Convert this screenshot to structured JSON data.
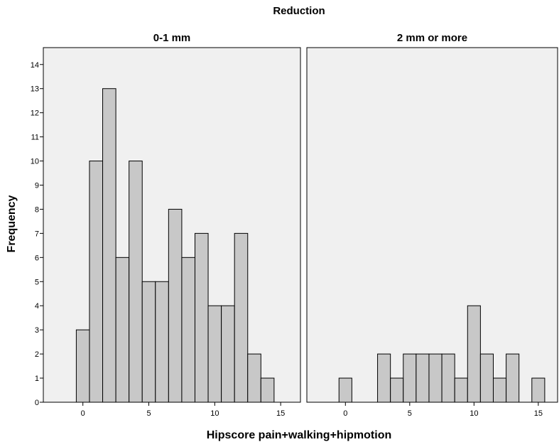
{
  "chart_data": {
    "type": "bar",
    "title": "Reduction",
    "xlabel": "Hipscore pain+walking+hipmotion",
    "ylabel": "Frequency",
    "ylim": [
      0,
      14.7
    ],
    "yticks": [
      0,
      1,
      2,
      3,
      4,
      5,
      6,
      7,
      8,
      9,
      10,
      11,
      12,
      13,
      14
    ],
    "xlim": [
      -3,
      16.5
    ],
    "xticks": [
      0,
      5,
      10,
      15
    ],
    "grid": false,
    "panels": [
      {
        "title": "0-1 mm",
        "x": [
          0,
          1,
          2,
          3,
          4,
          5,
          6,
          7,
          8,
          9,
          10,
          11,
          12,
          13,
          14
        ],
        "values": [
          3,
          10,
          13,
          6,
          10,
          5,
          5,
          8,
          6,
          7,
          4,
          4,
          7,
          2,
          1
        ]
      },
      {
        "title": "2 mm or more",
        "x": [
          0,
          3,
          4,
          5,
          6,
          7,
          8,
          9,
          10,
          11,
          12,
          13,
          15
        ],
        "values": [
          1,
          2,
          1,
          2,
          2,
          2,
          2,
          1,
          4,
          2,
          1,
          2,
          1
        ]
      }
    ],
    "colors": {
      "bar_fill": "#c8c8c8",
      "panel_background": "#f0f0f0",
      "outline": "#000000"
    }
  }
}
